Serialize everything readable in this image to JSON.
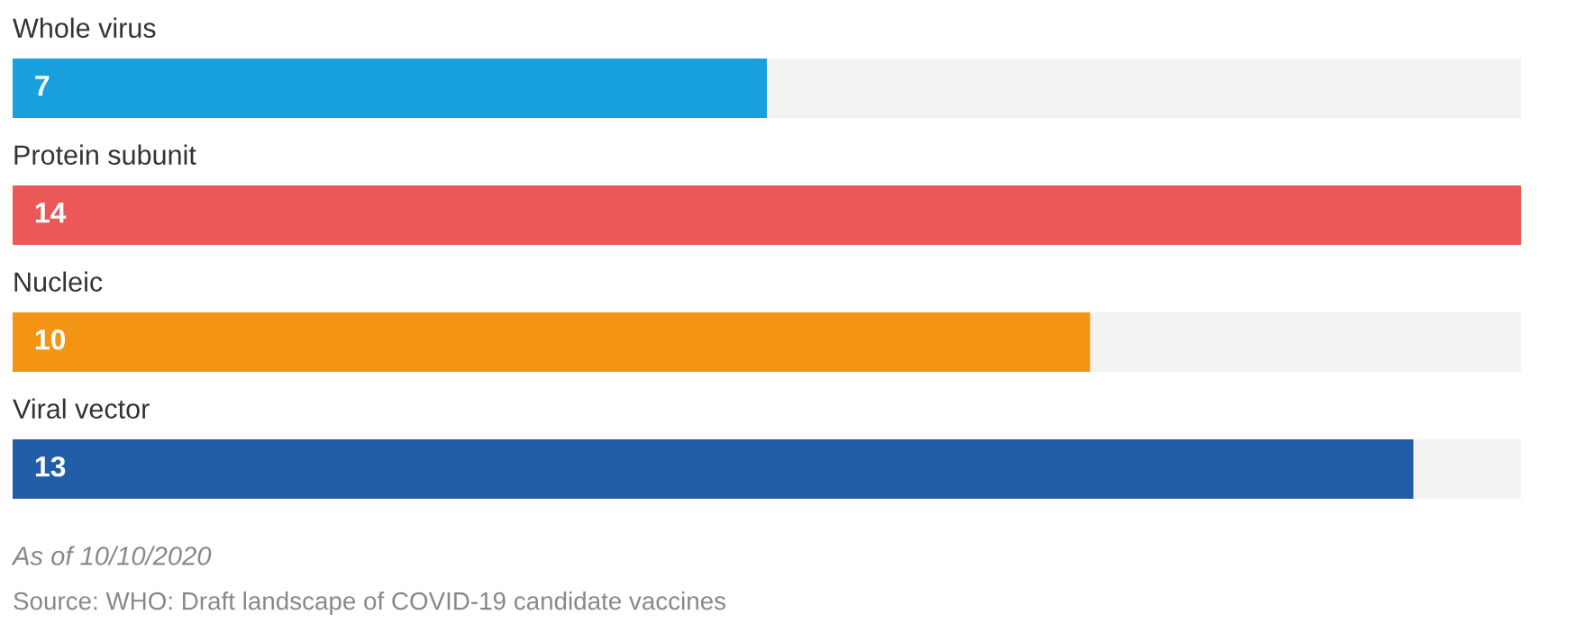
{
  "chart_data": {
    "type": "bar",
    "orientation": "horizontal",
    "categories": [
      "Whole virus",
      "Protein subunit",
      "Nucleic",
      "Viral vector"
    ],
    "values": [
      7,
      14,
      10,
      13
    ],
    "colors": [
      "#189fdd",
      "#ec5757",
      "#f39412",
      "#225ea8"
    ],
    "data_labels": true,
    "legend": false,
    "annotations": [
      "As of 10/10/2020",
      "Source: WHO: Draft landscape of COVID-19 candidate vaccines"
    ]
  }
}
